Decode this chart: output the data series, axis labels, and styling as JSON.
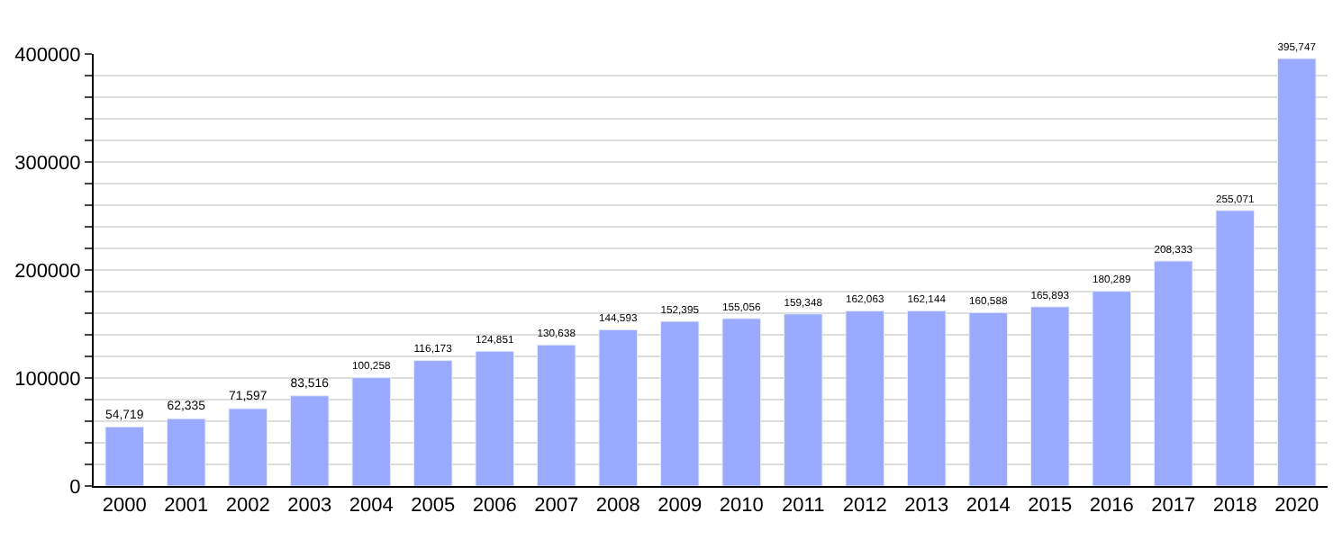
{
  "chart_data": {
    "type": "bar",
    "categories": [
      "2000",
      "2001",
      "2002",
      "2003",
      "2004",
      "2005",
      "2006",
      "2007",
      "2008",
      "2009",
      "2010",
      "2011",
      "2012",
      "2013",
      "2014",
      "2015",
      "2016",
      "2017",
      "2018",
      "2020"
    ],
    "values": [
      54719,
      62335,
      71597,
      83516,
      100258,
      116173,
      124851,
      130638,
      144593,
      152395,
      155056,
      159348,
      162063,
      162144,
      160588,
      165893,
      180289,
      208333,
      255071,
      395747
    ],
    "value_labels": [
      "54,719",
      "62,335",
      "71,597",
      "83,516",
      "100,258",
      "116,173",
      "124,851",
      "130,638",
      "144,593",
      "152,395",
      "155,056",
      "159,348",
      "162,063",
      "162,144",
      "160,588",
      "165,893",
      "180,289",
      "208,333",
      "255,071",
      "395,747"
    ],
    "color": "#99aaff",
    "ylim": [
      0,
      400000
    ],
    "yticks": [
      0,
      {
        "value": 20000,
        "label": null
      },
      {
        "value": 40000,
        "label": null
      },
      {
        "value": 60000,
        "label": null
      },
      {
        "value": 80000,
        "label": null
      },
      100000,
      {
        "value": 120000,
        "label": null
      },
      {
        "value": 140000,
        "label": null
      },
      {
        "value": 160000,
        "label": null
      },
      {
        "value": 180000,
        "label": null
      },
      200000,
      {
        "value": 220000,
        "label": null
      },
      {
        "value": 240000,
        "label": null
      },
      {
        "value": 260000,
        "label": null
      },
      {
        "value": 280000,
        "label": null
      },
      300000,
      {
        "value": 320000,
        "label": null
      },
      {
        "value": 340000,
        "label": null
      },
      {
        "value": 360000,
        "label": null
      },
      {
        "value": 380000,
        "label": null
      },
      400000
    ],
    "grid": "y",
    "legend": false
  }
}
